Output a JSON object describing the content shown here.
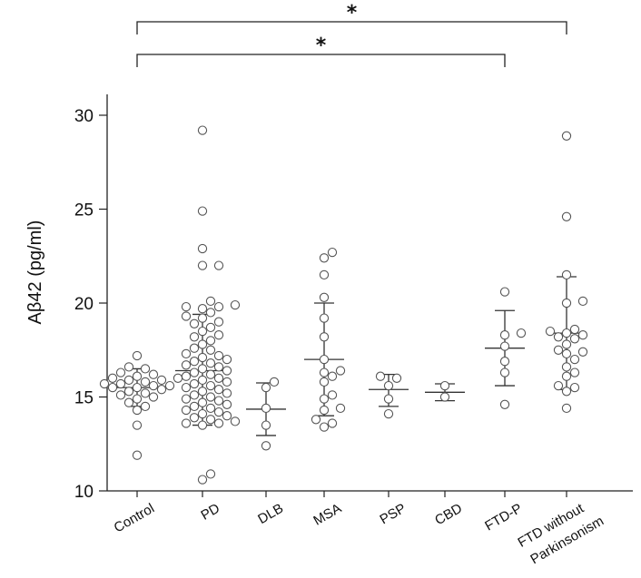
{
  "chart_data": {
    "type": "scatter",
    "title": "",
    "xlabel": "",
    "ylabel": "Aβ42 (pg/ml)",
    "ylim": [
      10,
      31
    ],
    "yticks": [
      10,
      15,
      20,
      25,
      30
    ],
    "categories": [
      {
        "id": "control",
        "lines": [
          "Control"
        ]
      },
      {
        "id": "pd",
        "lines": [
          "PD"
        ]
      },
      {
        "id": "dlb",
        "lines": [
          "DLB"
        ]
      },
      {
        "id": "msa",
        "lines": [
          "MSA"
        ]
      },
      {
        "id": "psp",
        "lines": [
          "PSP"
        ]
      },
      {
        "id": "cbd",
        "lines": [
          "CBD"
        ]
      },
      {
        "id": "ftd-p",
        "lines": [
          "FTD-P"
        ]
      },
      {
        "id": "ftd-np",
        "lines": [
          "FTD without",
          "Parkinsonism"
        ]
      }
    ],
    "groups": [
      {
        "name": "Control",
        "mean": 15.5,
        "sd_low": 14.5,
        "sd_high": 16.5,
        "values": [
          17.2,
          16.6,
          16.5,
          16.3,
          16.2,
          16.1,
          16.0,
          16.0,
          15.9,
          15.9,
          15.8,
          15.7,
          15.7,
          15.6,
          15.6,
          15.5,
          15.5,
          15.4,
          15.3,
          15.2,
          15.1,
          15.0,
          14.9,
          14.7,
          14.5,
          14.3,
          13.5,
          11.9
        ]
      },
      {
        "name": "PD",
        "mean": 16.4,
        "sd_low": 13.5,
        "sd_high": 19.4,
        "values": [
          29.2,
          24.9,
          22.9,
          22.0,
          22.0,
          20.1,
          19.9,
          19.8,
          19.8,
          19.7,
          19.5,
          19.3,
          19.2,
          19.0,
          18.9,
          18.7,
          18.5,
          18.3,
          18.2,
          18.0,
          17.8,
          17.6,
          17.5,
          17.3,
          17.2,
          17.1,
          17.0,
          16.9,
          16.8,
          16.7,
          16.6,
          16.5,
          16.4,
          16.3,
          16.2,
          16.1,
          16.0,
          15.9,
          15.8,
          15.7,
          15.6,
          15.5,
          15.4,
          15.3,
          15.2,
          15.1,
          15.0,
          14.9,
          14.8,
          14.7,
          14.6,
          14.5,
          14.4,
          14.3,
          14.2,
          14.1,
          14.0,
          13.9,
          13.8,
          13.7,
          13.6,
          13.6,
          13.5,
          10.9,
          10.6
        ]
      },
      {
        "name": "DLB",
        "mean": 14.35,
        "sd_low": 12.95,
        "sd_high": 15.75,
        "values": [
          15.8,
          15.5,
          14.4,
          13.5,
          12.4
        ]
      },
      {
        "name": "MSA",
        "mean": 17.0,
        "sd_low": 14.0,
        "sd_high": 20.0,
        "values": [
          22.7,
          22.4,
          21.5,
          20.3,
          19.2,
          18.2,
          17.0,
          16.4,
          16.3,
          16.1,
          15.8,
          15.1,
          14.9,
          14.4,
          14.3,
          13.8,
          13.6,
          13.4
        ]
      },
      {
        "name": "PSP",
        "mean": 15.4,
        "sd_low": 14.5,
        "sd_high": 16.2,
        "values": [
          16.1,
          16.0,
          15.6,
          14.9,
          14.1
        ]
      },
      {
        "name": "CBD",
        "mean": 15.25,
        "sd_low": 14.8,
        "sd_high": 15.7,
        "values": [
          15.6,
          15.0
        ]
      },
      {
        "name": "FTD-P",
        "mean": 17.6,
        "sd_low": 15.6,
        "sd_high": 19.6,
        "values": [
          20.6,
          18.4,
          18.3,
          17.7,
          16.9,
          16.3,
          14.6
        ]
      },
      {
        "name": "FTD without Parkinsonism",
        "mean": 18.4,
        "sd_low": 15.4,
        "sd_high": 21.4,
        "values": [
          28.9,
          24.6,
          21.5,
          20.1,
          20.0,
          18.6,
          18.5,
          18.4,
          18.3,
          18.2,
          18.1,
          17.8,
          17.5,
          17.4,
          17.3,
          17.0,
          16.6,
          16.3,
          16.1,
          15.6,
          15.5,
          15.3,
          14.4
        ]
      }
    ],
    "significance": [
      {
        "from": "Control",
        "to": "FTD without Parkinsonism",
        "label": "*"
      },
      {
        "from": "Control",
        "to": "FTD-P",
        "label": "*"
      }
    ]
  }
}
